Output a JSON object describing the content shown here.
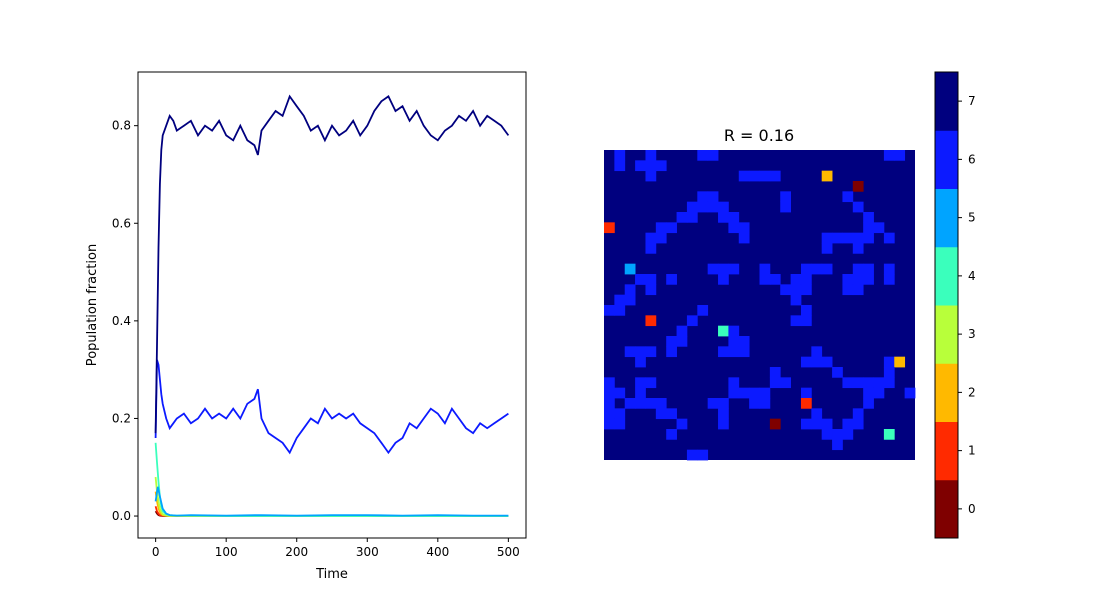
{
  "chart_data": [
    {
      "type": "line",
      "xlabel": "Time",
      "ylabel": "Population fraction",
      "xlim": [
        -25,
        525
      ],
      "ylim": [
        -0.045,
        0.91
      ],
      "xticks": [
        0,
        100,
        200,
        300,
        400,
        500
      ],
      "yticks": [
        0.0,
        0.2,
        0.4,
        0.6,
        0.8
      ],
      "xtick_labels": [
        "0",
        "100",
        "200",
        "300",
        "400",
        "500"
      ],
      "ytick_labels": [
        "0.0",
        "0.2",
        "0.4",
        "0.6",
        "0.8"
      ],
      "grid": false,
      "series": [
        {
          "color": "#00007f",
          "x": [
            0,
            2,
            4,
            6,
            8,
            10,
            15,
            20,
            25,
            30,
            40,
            50,
            60,
            70,
            80,
            90,
            100,
            110,
            120,
            130,
            140,
            145,
            150,
            160,
            170,
            180,
            190,
            200,
            210,
            220,
            230,
            240,
            250,
            260,
            270,
            280,
            290,
            300,
            310,
            320,
            330,
            340,
            350,
            360,
            370,
            380,
            390,
            400,
            410,
            420,
            430,
            440,
            450,
            460,
            470,
            480,
            490,
            500
          ],
          "y": [
            0.17,
            0.35,
            0.55,
            0.68,
            0.75,
            0.78,
            0.8,
            0.82,
            0.81,
            0.79,
            0.8,
            0.81,
            0.78,
            0.8,
            0.79,
            0.81,
            0.78,
            0.77,
            0.8,
            0.77,
            0.76,
            0.74,
            0.79,
            0.81,
            0.83,
            0.82,
            0.86,
            0.84,
            0.82,
            0.79,
            0.8,
            0.77,
            0.8,
            0.78,
            0.79,
            0.81,
            0.78,
            0.8,
            0.83,
            0.85,
            0.86,
            0.83,
            0.84,
            0.81,
            0.83,
            0.8,
            0.78,
            0.77,
            0.79,
            0.8,
            0.82,
            0.81,
            0.83,
            0.8,
            0.82,
            0.81,
            0.8,
            0.78
          ]
        },
        {
          "color": "#0c1aff",
          "x": [
            0,
            2,
            4,
            6,
            8,
            10,
            15,
            20,
            25,
            30,
            40,
            50,
            60,
            70,
            80,
            90,
            100,
            110,
            120,
            130,
            140,
            145,
            150,
            160,
            170,
            180,
            190,
            200,
            210,
            220,
            230,
            240,
            250,
            260,
            270,
            280,
            290,
            300,
            310,
            320,
            330,
            340,
            350,
            360,
            370,
            380,
            390,
            400,
            410,
            420,
            430,
            440,
            450,
            460,
            470,
            480,
            490,
            500
          ],
          "y": [
            0.16,
            0.32,
            0.31,
            0.28,
            0.25,
            0.23,
            0.2,
            0.18,
            0.19,
            0.2,
            0.21,
            0.19,
            0.2,
            0.22,
            0.2,
            0.21,
            0.2,
            0.22,
            0.2,
            0.23,
            0.24,
            0.26,
            0.2,
            0.17,
            0.16,
            0.15,
            0.13,
            0.16,
            0.18,
            0.2,
            0.19,
            0.22,
            0.2,
            0.21,
            0.2,
            0.21,
            0.19,
            0.18,
            0.17,
            0.15,
            0.13,
            0.15,
            0.16,
            0.19,
            0.18,
            0.2,
            0.22,
            0.21,
            0.19,
            0.22,
            0.2,
            0.18,
            0.17,
            0.19,
            0.18,
            0.19,
            0.2,
            0.21
          ]
        },
        {
          "color": "#00a4ff",
          "x": [
            0,
            3,
            6,
            10,
            15,
            20,
            30,
            50,
            100,
            150,
            200,
            250,
            300,
            350,
            400,
            450,
            500
          ],
          "y": [
            0.03,
            0.06,
            0.04,
            0.015,
            0.005,
            0.002,
            0.001,
            0.002,
            0.001,
            0.002,
            0.001,
            0.002,
            0.002,
            0.001,
            0.002,
            0.001,
            0.001
          ]
        },
        {
          "color": "#3affbc",
          "x": [
            0,
            2,
            4,
            6,
            8,
            10,
            15,
            20,
            30,
            50,
            100,
            200,
            300,
            400,
            500
          ],
          "y": [
            0.15,
            0.11,
            0.07,
            0.04,
            0.02,
            0.01,
            0.004,
            0.002,
            0.001,
            0.001,
            0.0,
            0.0,
            0.0,
            0.0,
            0.0
          ]
        },
        {
          "color": "#b8ff3a",
          "x": [
            0,
            2,
            4,
            6,
            8,
            10,
            15,
            20,
            50,
            100,
            200,
            300,
            400,
            500
          ],
          "y": [
            0.08,
            0.05,
            0.03,
            0.015,
            0.008,
            0.004,
            0.001,
            0.0,
            0.0,
            0.0,
            0.0,
            0.0,
            0.0,
            0.0
          ]
        },
        {
          "color": "#ffb900",
          "x": [
            0,
            2,
            4,
            6,
            8,
            10,
            15,
            20,
            50,
            100,
            200,
            300,
            400,
            500
          ],
          "y": [
            0.05,
            0.03,
            0.015,
            0.008,
            0.004,
            0.002,
            0.001,
            0.0,
            0.0,
            0.0,
            0.0,
            0.0,
            0.0,
            0.0
          ]
        },
        {
          "color": "#ff2a00",
          "x": [
            0,
            2,
            4,
            6,
            10,
            20,
            50,
            100,
            200,
            300,
            400,
            500
          ],
          "y": [
            0.02,
            0.01,
            0.005,
            0.002,
            0.001,
            0.0,
            0.0,
            0.0,
            0.0,
            0.0,
            0.0,
            0.0
          ]
        },
        {
          "color": "#7f0000",
          "x": [
            0,
            2,
            4,
            6,
            10,
            20,
            50,
            100,
            200,
            300,
            400,
            500
          ],
          "y": [
            0.01,
            0.005,
            0.002,
            0.001,
            0.0,
            0.0,
            0.0,
            0.0,
            0.0,
            0.0,
            0.0,
            0.0
          ]
        }
      ]
    },
    {
      "type": "heatmap",
      "title": "R = 0.16",
      "grid_size": 30,
      "background_value": 7,
      "colors": [
        "#7f0000",
        "#ff2a00",
        "#ffb900",
        "#b8ff3a",
        "#3affbc",
        "#00a4ff",
        "#0c1aff",
        "#00007f"
      ],
      "colorbar_ticks": [
        "0",
        "1",
        "2",
        "3",
        "4",
        "5",
        "6",
        "7"
      ],
      "cells": [
        [
          1,
          0,
          6
        ],
        [
          1,
          1,
          6
        ],
        [
          4,
          1,
          6
        ],
        [
          4,
          2,
          6
        ],
        [
          3,
          1,
          6
        ],
        [
          5,
          1,
          6
        ],
        [
          4,
          0,
          6
        ],
        [
          9,
          0,
          6
        ],
        [
          10,
          0,
          6
        ],
        [
          27,
          0,
          6
        ],
        [
          28,
          0,
          6
        ],
        [
          13,
          2,
          6
        ],
        [
          14,
          2,
          6
        ],
        [
          15,
          2,
          6
        ],
        [
          16,
          2,
          6
        ],
        [
          21,
          2,
          2
        ],
        [
          24,
          3,
          0
        ],
        [
          9,
          4,
          6
        ],
        [
          10,
          4,
          6
        ],
        [
          17,
          4,
          6
        ],
        [
          23,
          4,
          6
        ],
        [
          8,
          5,
          6
        ],
        [
          9,
          5,
          6
        ],
        [
          10,
          5,
          6
        ],
        [
          11,
          5,
          6
        ],
        [
          17,
          5,
          6
        ],
        [
          24,
          5,
          6
        ],
        [
          7,
          6,
          6
        ],
        [
          8,
          6,
          6
        ],
        [
          11,
          6,
          6
        ],
        [
          12,
          6,
          6
        ],
        [
          25,
          6,
          6
        ],
        [
          0,
          7,
          1
        ],
        [
          5,
          7,
          6
        ],
        [
          6,
          7,
          6
        ],
        [
          12,
          7,
          6
        ],
        [
          13,
          7,
          6
        ],
        [
          25,
          7,
          6
        ],
        [
          26,
          7,
          6
        ],
        [
          4,
          8,
          6
        ],
        [
          5,
          8,
          6
        ],
        [
          13,
          8,
          6
        ],
        [
          21,
          8,
          6
        ],
        [
          22,
          8,
          6
        ],
        [
          23,
          8,
          6
        ],
        [
          24,
          8,
          6
        ],
        [
          25,
          8,
          6
        ],
        [
          27,
          8,
          6
        ],
        [
          4,
          9,
          6
        ],
        [
          21,
          9,
          6
        ],
        [
          24,
          9,
          6
        ],
        [
          11,
          11,
          6
        ],
        [
          20,
          11,
          6
        ],
        [
          21,
          11,
          6
        ],
        [
          24,
          11,
          6
        ],
        [
          25,
          11,
          6
        ],
        [
          27,
          11,
          6
        ],
        [
          2,
          11,
          5
        ],
        [
          10,
          11,
          6
        ],
        [
          12,
          11,
          6
        ],
        [
          15,
          11,
          6
        ],
        [
          19,
          11,
          6
        ],
        [
          3,
          12,
          6
        ],
        [
          4,
          12,
          6
        ],
        [
          6,
          12,
          6
        ],
        [
          11,
          12,
          6
        ],
        [
          15,
          12,
          6
        ],
        [
          16,
          12,
          6
        ],
        [
          18,
          12,
          6
        ],
        [
          19,
          12,
          6
        ],
        [
          27,
          12,
          6
        ],
        [
          23,
          12,
          6
        ],
        [
          24,
          12,
          6
        ],
        [
          25,
          12,
          6
        ],
        [
          2,
          13,
          6
        ],
        [
          3,
          12,
          6
        ],
        [
          4,
          13,
          6
        ],
        [
          17,
          13,
          6
        ],
        [
          18,
          13,
          6
        ],
        [
          19,
          13,
          6
        ],
        [
          23,
          13,
          6
        ],
        [
          24,
          13,
          6
        ],
        [
          1,
          14,
          6
        ],
        [
          2,
          14,
          6
        ],
        [
          18,
          14,
          6
        ],
        [
          0,
          15,
          6
        ],
        [
          1,
          15,
          6
        ],
        [
          9,
          15,
          6
        ],
        [
          19,
          15,
          6
        ],
        [
          4,
          16,
          1
        ],
        [
          8,
          16,
          6
        ],
        [
          18,
          16,
          6
        ],
        [
          19,
          16,
          6
        ],
        [
          7,
          17,
          6
        ],
        [
          11,
          17,
          4
        ],
        [
          12,
          17,
          6
        ],
        [
          6,
          18,
          6
        ],
        [
          7,
          18,
          6
        ],
        [
          12,
          18,
          6
        ],
        [
          13,
          18,
          6
        ],
        [
          2,
          19,
          6
        ],
        [
          3,
          19,
          6
        ],
        [
          4,
          19,
          6
        ],
        [
          6,
          19,
          6
        ],
        [
          11,
          19,
          6
        ],
        [
          12,
          19,
          6
        ],
        [
          13,
          19,
          6
        ],
        [
          20,
          19,
          6
        ],
        [
          3,
          20,
          6
        ],
        [
          19,
          20,
          6
        ],
        [
          20,
          20,
          6
        ],
        [
          21,
          20,
          6
        ],
        [
          27,
          20,
          6
        ],
        [
          28,
          20,
          2
        ],
        [
          22,
          21,
          6
        ],
        [
          27,
          21,
          6
        ],
        [
          16,
          21,
          6
        ],
        [
          0,
          22,
          6
        ],
        [
          3,
          22,
          6
        ],
        [
          4,
          22,
          6
        ],
        [
          12,
          22,
          6
        ],
        [
          16,
          22,
          6
        ],
        [
          17,
          22,
          6
        ],
        [
          23,
          22,
          6
        ],
        [
          24,
          22,
          6
        ],
        [
          25,
          22,
          6
        ],
        [
          26,
          22,
          6
        ],
        [
          27,
          22,
          6
        ],
        [
          0,
          23,
          6
        ],
        [
          1,
          23,
          6
        ],
        [
          3,
          23,
          6
        ],
        [
          12,
          23,
          6
        ],
        [
          13,
          23,
          6
        ],
        [
          14,
          23,
          6
        ],
        [
          15,
          23,
          6
        ],
        [
          19,
          23,
          6
        ],
        [
          25,
          23,
          6
        ],
        [
          26,
          23,
          6
        ],
        [
          29,
          23,
          6
        ],
        [
          0,
          24,
          6
        ],
        [
          2,
          24,
          6
        ],
        [
          3,
          24,
          6
        ],
        [
          4,
          24,
          6
        ],
        [
          5,
          24,
          6
        ],
        [
          10,
          24,
          6
        ],
        [
          11,
          24,
          6
        ],
        [
          14,
          24,
          6
        ],
        [
          15,
          24,
          6
        ],
        [
          19,
          24,
          1
        ],
        [
          25,
          24,
          6
        ],
        [
          0,
          25,
          6
        ],
        [
          1,
          25,
          6
        ],
        [
          5,
          25,
          6
        ],
        [
          6,
          25,
          6
        ],
        [
          11,
          25,
          6
        ],
        [
          20,
          25,
          6
        ],
        [
          24,
          25,
          6
        ],
        [
          0,
          26,
          6
        ],
        [
          1,
          26,
          6
        ],
        [
          7,
          26,
          6
        ],
        [
          11,
          26,
          6
        ],
        [
          16,
          26,
          0
        ],
        [
          19,
          26,
          6
        ],
        [
          20,
          26,
          6
        ],
        [
          21,
          26,
          6
        ],
        [
          23,
          26,
          6
        ],
        [
          24,
          26,
          6
        ],
        [
          6,
          27,
          6
        ],
        [
          21,
          27,
          6
        ],
        [
          22,
          27,
          6
        ],
        [
          23,
          27,
          6
        ],
        [
          27,
          27,
          4
        ],
        [
          22,
          28,
          6
        ],
        [
          8,
          29,
          6
        ],
        [
          9,
          29,
          6
        ]
      ]
    }
  ]
}
